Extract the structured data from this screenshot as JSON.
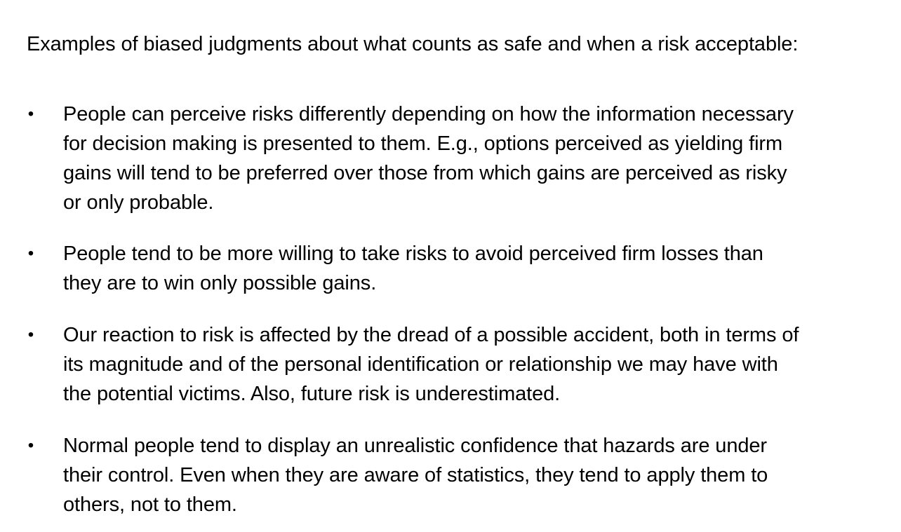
{
  "document": {
    "intro": "Examples of biased judgments about what counts as safe and when a risk acceptable:",
    "bullet_symbol": "•",
    "bullets": [
      {
        "lines": [
          "People can perceive risks differently depending on how the information necessary",
          "for decision making is presented to them. E.g., options perceived as yielding firm",
          "gains will tend to be preferred over those from which gains are perceived as risky",
          "or only probable."
        ]
      },
      {
        "lines": [
          "People tend to be more willing to take risks to avoid perceived firm losses than",
          "they are to win only possible gains."
        ]
      },
      {
        "lines": [
          "Our reaction to risk is affected by the dread of a possible accident, both in terms of",
          "its magnitude and of the personal identification or relationship we may have with",
          "the potential victims. Also, future risk is underestimated."
        ]
      },
      {
        "lines": [
          "Normal people tend to display an unrealistic confidence that hazards are under",
          "their control. Even when they are aware of statistics, they tend to apply them to",
          "others, not to them."
        ]
      }
    ]
  }
}
